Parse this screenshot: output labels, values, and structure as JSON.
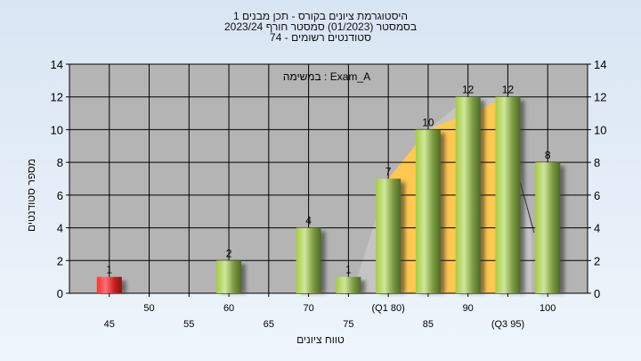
{
  "chart_data": {
    "type": "bar",
    "title_lines": [
      "היסטוגרמת ציונים בקורס - תכן מבנים 1",
      "בסמסטר  (01/2023)  סמסטר חורף 2023/24",
      "סטודנטים רשומים - 74"
    ],
    "legend": "Exam_A : במשימה",
    "xlabel": "טווח ציונים",
    "ylabel": "מספר סטודנטים",
    "xlim": [
      40,
      105
    ],
    "ylim": [
      0,
      14
    ],
    "yticks": [
      0,
      2,
      4,
      6,
      8,
      10,
      12,
      14
    ],
    "xtick_labels_row1": [
      {
        "x": 50,
        "label": "50"
      },
      {
        "x": 60,
        "label": "60"
      },
      {
        "x": 70,
        "label": "70"
      },
      {
        "x": 80,
        "label": "(Q1 80)"
      },
      {
        "x": 90,
        "label": "90"
      },
      {
        "x": 100,
        "label": "100"
      }
    ],
    "xtick_labels_row2": [
      {
        "x": 45,
        "label": "45"
      },
      {
        "x": 55,
        "label": "55"
      },
      {
        "x": 65,
        "label": "65"
      },
      {
        "x": 75,
        "label": "75"
      },
      {
        "x": 85,
        "label": "85"
      },
      {
        "x": 95,
        "label": "(Q3 95)"
      }
    ],
    "bars": [
      {
        "x": 45,
        "value": 1,
        "color": "red"
      },
      {
        "x": 60,
        "value": 2,
        "color": "green"
      },
      {
        "x": 70,
        "value": 4,
        "color": "green"
      },
      {
        "x": 75,
        "value": 1,
        "color": "green"
      },
      {
        "x": 80,
        "value": 7,
        "color": "green"
      },
      {
        "x": 85,
        "value": 10,
        "color": "green"
      },
      {
        "x": 90,
        "value": 12,
        "color": "green"
      },
      {
        "x": 95,
        "value": 12,
        "color": "green"
      },
      {
        "x": 100,
        "value": 8,
        "color": "green"
      }
    ],
    "quartiles": {
      "q1": 80,
      "q3": 95
    },
    "grid": true,
    "colors": {
      "plot_bg": "#b4b4b4",
      "iqr_fill": "#ffc850",
      "range_fill": "#c4c4c4",
      "red_bar": "#e02020",
      "green_bar": "#9cc040"
    }
  }
}
